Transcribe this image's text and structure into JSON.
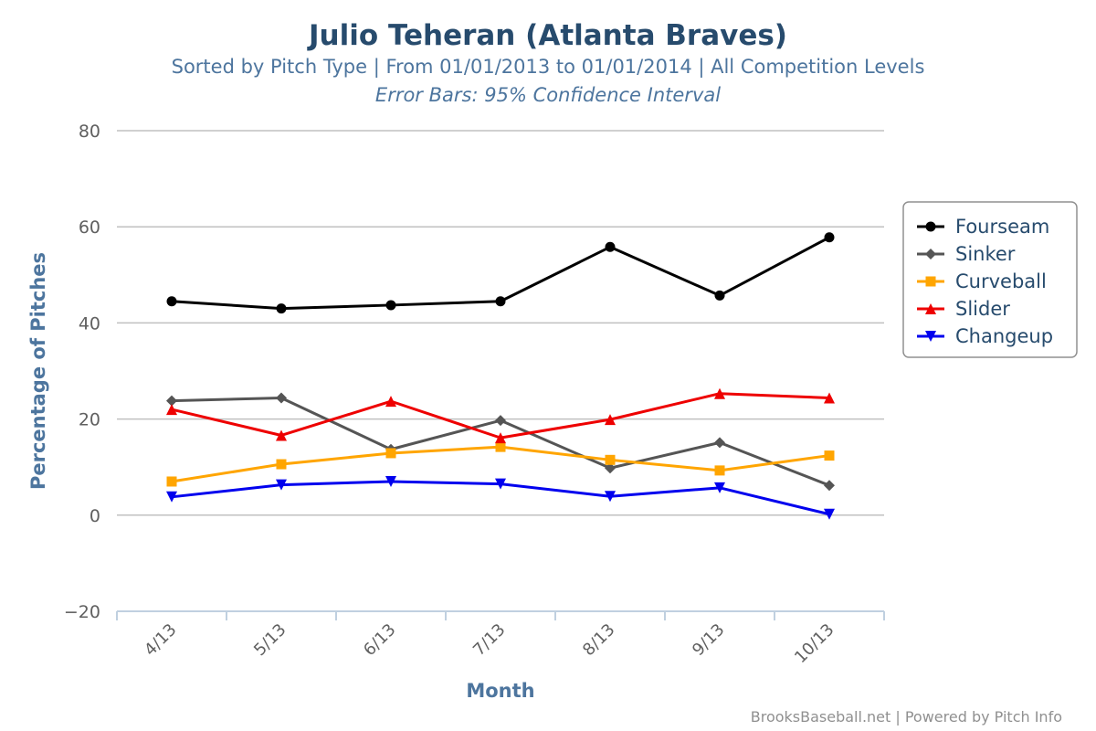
{
  "chart_data": {
    "type": "line",
    "title": "Julio Teheran (Atlanta Braves)",
    "subtitle": "Sorted by Pitch Type | From 01/01/2013 to 01/01/2014 | All Competition Levels",
    "subtitle2": "Error Bars: 95% Confidence Interval",
    "xlabel": "Month",
    "ylabel": "Percentage of Pitches",
    "categories": [
      "4/13",
      "5/13",
      "6/13",
      "7/13",
      "8/13",
      "9/13",
      "10/13"
    ],
    "ylim": [
      -20,
      80
    ],
    "yticks": [
      -20,
      0,
      20,
      40,
      60,
      80
    ],
    "grid": true,
    "legend_position": "right",
    "series": [
      {
        "name": "Fourseam",
        "color": "#000000",
        "marker": "circle",
        "values": [
          44.5,
          43.0,
          43.7,
          44.5,
          55.8,
          45.7,
          57.8
        ]
      },
      {
        "name": "Sinker",
        "color": "#555555",
        "marker": "diamond",
        "values": [
          23.8,
          24.4,
          13.7,
          19.7,
          9.8,
          15.1,
          6.2
        ]
      },
      {
        "name": "Curveball",
        "color": "#FFA500",
        "marker": "square",
        "values": [
          7.0,
          10.6,
          12.9,
          14.2,
          11.5,
          9.3,
          12.4
        ]
      },
      {
        "name": "Slider",
        "color": "#EE0000",
        "marker": "triangle",
        "values": [
          22.0,
          16.6,
          23.7,
          16.1,
          19.9,
          25.3,
          24.4
        ]
      },
      {
        "name": "Changeup",
        "color": "#0000EE",
        "marker": "triangle-down",
        "values": [
          3.8,
          6.3,
          7.0,
          6.5,
          3.9,
          5.7,
          0.2
        ]
      }
    ],
    "credits": "BrooksBaseball.net | Powered by Pitch Info"
  }
}
